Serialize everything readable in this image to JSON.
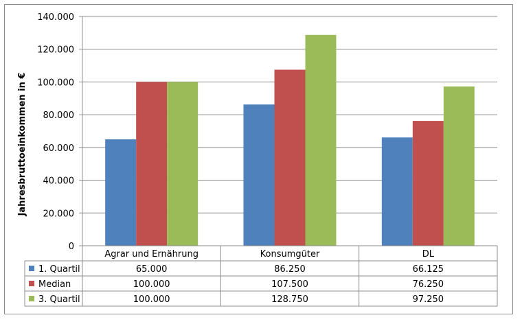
{
  "chart_data": {
    "type": "bar",
    "title": "",
    "xlabel": "",
    "ylabel": "Jahresbruttoeinkommen in €",
    "ylim": [
      0,
      140000
    ],
    "yticks": [
      0,
      20000,
      40000,
      60000,
      80000,
      100000,
      120000,
      140000
    ],
    "ytick_labels": [
      "0",
      "20.000",
      "40.000",
      "60.000",
      "80.000",
      "100.000",
      "120.000",
      "140.000"
    ],
    "categories": [
      "Agrar und Ernährung",
      "Konsumgüter",
      "DL"
    ],
    "series": [
      {
        "name": "1. Quartil",
        "color": "#4f81bd",
        "values": [
          65000,
          86250,
          66125
        ],
        "labels": [
          "65.000",
          "86.250",
          "66.125"
        ]
      },
      {
        "name": "Median",
        "color": "#c0504d",
        "values": [
          100000,
          107500,
          76250
        ],
        "labels": [
          "100.000",
          "107.500",
          "76.250"
        ]
      },
      {
        "name": "3. Quartil",
        "color": "#9bbb59",
        "values": [
          100000,
          128750,
          97250
        ],
        "labels": [
          "100.000",
          "128.750",
          "97.250"
        ]
      }
    ],
    "grid": true,
    "legend": "data-table"
  }
}
